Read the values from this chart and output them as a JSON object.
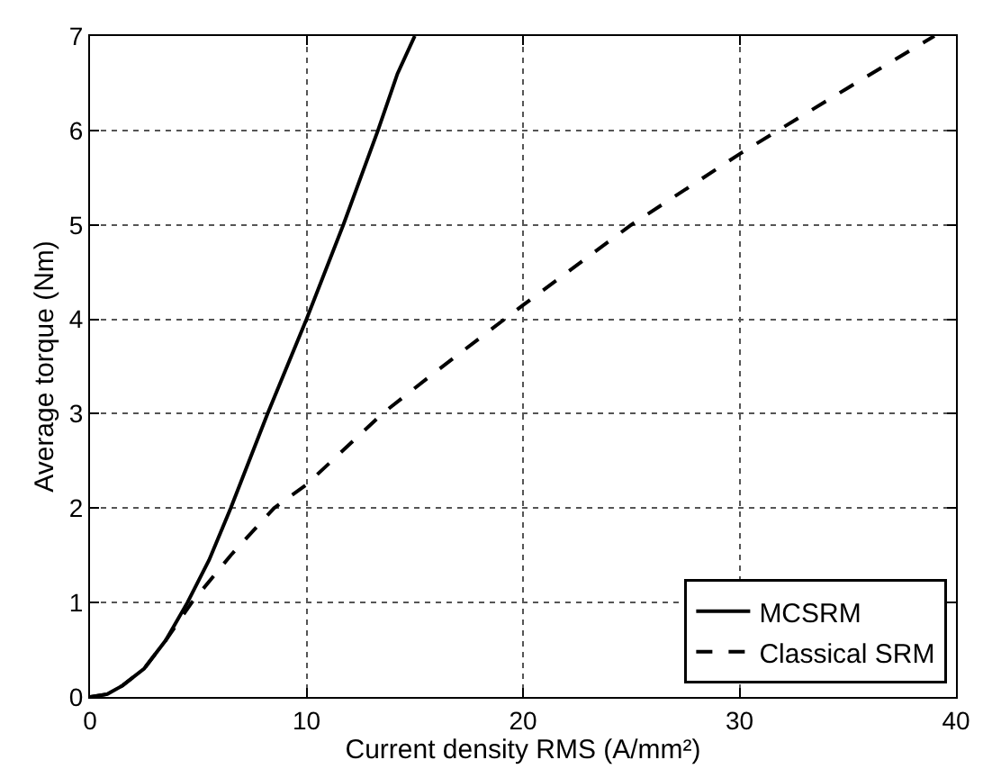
{
  "chart_data": {
    "type": "line",
    "xlabel": "Current density RMS (A/mm²)",
    "ylabel": "Average torque (Nm)",
    "xlim": [
      0,
      40
    ],
    "ylim": [
      0,
      7
    ],
    "xticks": [
      0,
      10,
      20,
      30,
      40
    ],
    "yticks": [
      0,
      1,
      2,
      3,
      4,
      5,
      6,
      7
    ],
    "grid": true,
    "legend": "bottom right",
    "marker": "none",
    "series": [
      {
        "name": "MCSRM",
        "color": "#000000",
        "line_style": "solid",
        "x": [
          0,
          0.8,
          1.5,
          2.5,
          3.5,
          4.5,
          5.5,
          6.5,
          8.2,
          10,
          11.7,
          13.3,
          14.2,
          15
        ],
        "values": [
          0,
          0.03,
          0.12,
          0.3,
          0.6,
          1.0,
          1.45,
          2.0,
          3.0,
          4.0,
          5.0,
          6.0,
          6.6,
          7.0
        ]
      },
      {
        "name": "Classical SRM",
        "color": "#000000",
        "line_style": "dashed",
        "x": [
          0,
          0.8,
          1.5,
          2.5,
          3.5,
          4.7,
          6.5,
          8.5,
          10,
          13.5,
          16,
          20,
          25,
          30,
          35,
          39
        ],
        "values": [
          0,
          0.03,
          0.12,
          0.3,
          0.6,
          1.0,
          1.5,
          2.0,
          2.25,
          3.0,
          3.45,
          4.15,
          5.0,
          5.75,
          6.45,
          7.0
        ]
      }
    ]
  }
}
